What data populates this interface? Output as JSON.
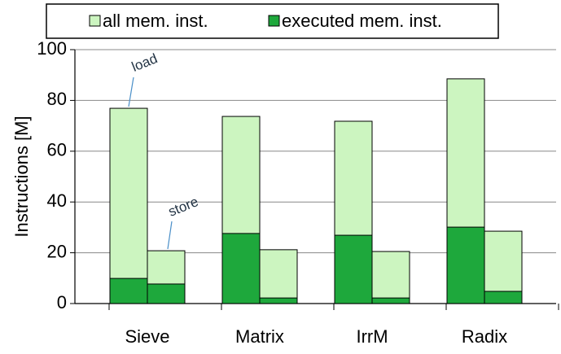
{
  "chart_data": {
    "type": "bar",
    "categories": [
      "Sieve",
      "Matrix",
      "IrrM",
      "Radix"
    ],
    "series": [
      {
        "name": "all mem. inst.",
        "color": "#ccf5c0",
        "values": [
          [
            76.9,
            20.8
          ],
          [
            73.7,
            21.2
          ],
          [
            71.8,
            20.5
          ],
          [
            88.5,
            28.5
          ]
        ]
      },
      {
        "name": "executed mem. inst.",
        "color": "#1ea83c",
        "values": [
          [
            9.9,
            7.7
          ],
          [
            27.6,
            2.2
          ],
          [
            26.9,
            2.2
          ],
          [
            30.1,
            4.8
          ]
        ]
      }
    ],
    "ylabel": "Instructions [M]",
    "ylim": [
      0,
      100
    ],
    "yticks": [
      0,
      20,
      40,
      60,
      80,
      100
    ],
    "grid": true,
    "annotations": [
      "load",
      "store"
    ]
  }
}
